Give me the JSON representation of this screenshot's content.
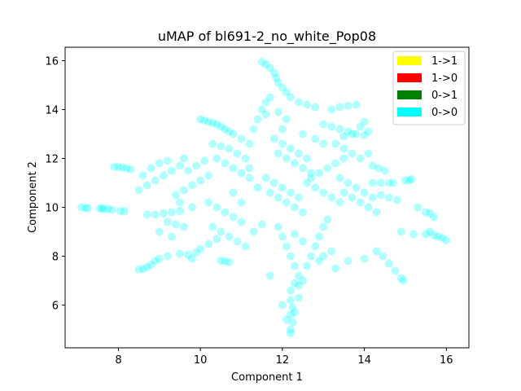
{
  "chart_data": {
    "type": "scatter",
    "title": "uMAP of bl691-2_no_white_Pop08",
    "xlabel": "Component 1",
    "ylabel": "Component 2",
    "xlim": [
      6.7,
      16.55
    ],
    "ylim": [
      4.25,
      16.55
    ],
    "xticks": [
      8,
      10,
      12,
      14,
      16
    ],
    "yticks": [
      6,
      8,
      10,
      12,
      14,
      16
    ],
    "grid": false,
    "legend_position": "top-right",
    "legend": [
      {
        "label": "1->1",
        "color": "#ffff00"
      },
      {
        "label": "1->0",
        "color": "#ff0000"
      },
      {
        "label": "0->1",
        "color": "#008000"
      },
      {
        "label": "0->0",
        "color": "#00ffff"
      }
    ],
    "series": [
      {
        "name": "0->0",
        "color": "#00ffff",
        "alpha": 0.3,
        "points": [
          [
            7.1,
            10.0
          ],
          [
            7.2,
            9.98
          ],
          [
            7.25,
            9.96
          ],
          [
            7.55,
            9.95
          ],
          [
            7.6,
            9.95
          ],
          [
            7.65,
            9.94
          ],
          [
            7.75,
            9.93
          ],
          [
            7.85,
            9.9
          ],
          [
            8.05,
            9.85
          ],
          [
            8.15,
            9.84
          ],
          [
            7.9,
            11.65
          ],
          [
            8.0,
            11.65
          ],
          [
            8.1,
            11.62
          ],
          [
            8.2,
            11.6
          ],
          [
            8.3,
            11.55
          ],
          [
            8.5,
            7.45
          ],
          [
            8.6,
            7.48
          ],
          [
            8.7,
            7.55
          ],
          [
            8.8,
            7.65
          ],
          [
            8.9,
            7.8
          ],
          [
            9.0,
            7.9
          ],
          [
            9.2,
            8.0
          ],
          [
            9.5,
            8.1
          ],
          [
            9.7,
            8.05
          ],
          [
            9.9,
            8.15
          ],
          [
            8.7,
            9.7
          ],
          [
            8.9,
            9.7
          ],
          [
            9.1,
            9.75
          ],
          [
            9.3,
            9.8
          ],
          [
            9.5,
            9.85
          ],
          [
            9.2,
            9.4
          ],
          [
            9.4,
            9.3
          ],
          [
            9.6,
            9.2
          ],
          [
            9.0,
            9.0
          ],
          [
            9.3,
            8.8
          ],
          [
            8.5,
            10.7
          ],
          [
            8.7,
            10.9
          ],
          [
            8.9,
            11.1
          ],
          [
            9.1,
            11.3
          ],
          [
            9.3,
            11.5
          ],
          [
            8.6,
            11.3
          ],
          [
            8.8,
            11.6
          ],
          [
            9.0,
            11.8
          ],
          [
            9.2,
            11.9
          ],
          [
            9.5,
            11.7
          ],
          [
            9.4,
            10.5
          ],
          [
            9.6,
            10.7
          ],
          [
            9.8,
            10.9
          ],
          [
            10.0,
            11.1
          ],
          [
            10.2,
            11.3
          ],
          [
            9.7,
            11.5
          ],
          [
            9.9,
            11.7
          ],
          [
            10.1,
            11.9
          ],
          [
            9.5,
            10.2
          ],
          [
            9.8,
            10.0
          ],
          [
            10.0,
            13.6
          ],
          [
            10.1,
            13.55
          ],
          [
            10.2,
            13.5
          ],
          [
            10.3,
            13.45
          ],
          [
            10.4,
            13.4
          ],
          [
            10.5,
            13.3
          ],
          [
            10.6,
            13.2
          ],
          [
            10.7,
            13.1
          ],
          [
            10.8,
            13.0
          ],
          [
            11.0,
            12.8
          ],
          [
            10.3,
            12.6
          ],
          [
            10.5,
            12.5
          ],
          [
            10.7,
            12.4
          ],
          [
            10.9,
            12.2
          ],
          [
            11.1,
            12.0
          ],
          [
            10.4,
            12.0
          ],
          [
            10.6,
            11.8
          ],
          [
            10.8,
            11.6
          ],
          [
            11.0,
            11.4
          ],
          [
            11.2,
            11.2
          ],
          [
            10.2,
            10.2
          ],
          [
            10.4,
            10.0
          ],
          [
            10.6,
            9.8
          ],
          [
            10.8,
            9.6
          ],
          [
            11.0,
            9.4
          ],
          [
            10.3,
            9.2
          ],
          [
            10.5,
            9.0
          ],
          [
            10.7,
            8.8
          ],
          [
            10.9,
            8.6
          ],
          [
            11.1,
            8.4
          ],
          [
            10.6,
            7.8
          ],
          [
            10.7,
            7.75
          ],
          [
            10.5,
            7.82
          ],
          [
            9.8,
            7.9
          ],
          [
            10.0,
            8.3
          ],
          [
            10.2,
            8.5
          ],
          [
            10.4,
            8.7
          ],
          [
            11.7,
            7.2
          ],
          [
            11.3,
            9.0
          ],
          [
            11.5,
            9.3
          ],
          [
            11.5,
            15.95
          ],
          [
            11.6,
            15.85
          ],
          [
            11.7,
            15.7
          ],
          [
            11.8,
            15.5
          ],
          [
            11.85,
            15.3
          ],
          [
            11.9,
            15.1
          ],
          [
            12.0,
            14.9
          ],
          [
            12.1,
            14.7
          ],
          [
            11.7,
            14.5
          ],
          [
            11.6,
            14.3
          ],
          [
            12.2,
            14.5
          ],
          [
            12.4,
            14.3
          ],
          [
            12.6,
            14.2
          ],
          [
            12.8,
            14.1
          ],
          [
            11.5,
            14.0
          ],
          [
            11.4,
            13.6
          ],
          [
            11.3,
            13.2
          ],
          [
            11.6,
            13.8
          ],
          [
            11.9,
            13.9
          ],
          [
            12.1,
            13.6
          ],
          [
            11.8,
            12.8
          ],
          [
            12.0,
            12.6
          ],
          [
            12.2,
            12.4
          ],
          [
            12.4,
            12.2
          ],
          [
            12.6,
            12.0
          ],
          [
            11.9,
            12.2
          ],
          [
            12.1,
            12.0
          ],
          [
            12.3,
            11.8
          ],
          [
            12.5,
            11.6
          ],
          [
            12.7,
            11.4
          ],
          [
            11.6,
            11.2
          ],
          [
            11.8,
            11.0
          ],
          [
            12.0,
            10.8
          ],
          [
            12.2,
            10.6
          ],
          [
            12.4,
            10.4
          ],
          [
            11.7,
            10.6
          ],
          [
            11.9,
            10.4
          ],
          [
            12.1,
            10.2
          ],
          [
            12.3,
            10.0
          ],
          [
            12.5,
            9.8
          ],
          [
            12.6,
            11.0
          ],
          [
            12.8,
            10.8
          ],
          [
            13.0,
            10.6
          ],
          [
            13.2,
            10.4
          ],
          [
            13.4,
            10.2
          ],
          [
            12.7,
            11.2
          ],
          [
            12.9,
            11.4
          ],
          [
            13.1,
            11.6
          ],
          [
            13.3,
            11.8
          ],
          [
            13.5,
            12.0
          ],
          [
            11.9,
            9.2
          ],
          [
            12.0,
            8.8
          ],
          [
            12.1,
            8.4
          ],
          [
            12.2,
            8.0
          ],
          [
            12.3,
            7.6
          ],
          [
            12.4,
            7.2
          ],
          [
            12.3,
            6.9
          ],
          [
            12.2,
            6.6
          ],
          [
            12.4,
            6.8
          ],
          [
            12.5,
            7.0
          ],
          [
            12.2,
            6.2
          ],
          [
            12.25,
            5.9
          ],
          [
            12.2,
            5.6
          ],
          [
            12.25,
            5.3
          ],
          [
            12.2,
            5.0
          ],
          [
            12.2,
            4.85
          ],
          [
            12.1,
            5.4
          ],
          [
            12.3,
            5.7
          ],
          [
            12.0,
            6.0
          ],
          [
            12.4,
            6.3
          ],
          [
            12.6,
            7.6
          ],
          [
            12.7,
            8.0
          ],
          [
            12.8,
            8.4
          ],
          [
            12.9,
            8.8
          ],
          [
            13.0,
            9.2
          ],
          [
            13.1,
            9.5
          ],
          [
            12.5,
            8.6
          ],
          [
            12.3,
            8.9
          ],
          [
            12.9,
            7.8
          ],
          [
            13.2,
            8.2
          ],
          [
            13.0,
            13.4
          ],
          [
            13.2,
            13.3
          ],
          [
            13.4,
            13.2
          ],
          [
            13.6,
            13.1
          ],
          [
            13.8,
            13.0
          ],
          [
            14.0,
            12.95
          ],
          [
            14.1,
            13.1
          ],
          [
            13.9,
            13.3
          ],
          [
            13.7,
            13.0
          ],
          [
            13.5,
            12.9
          ],
          [
            13.2,
            14.0
          ],
          [
            13.4,
            14.1
          ],
          [
            13.6,
            14.15
          ],
          [
            13.8,
            14.2
          ],
          [
            14.0,
            13.5
          ],
          [
            13.3,
            12.6
          ],
          [
            13.5,
            12.4
          ],
          [
            13.7,
            12.2
          ],
          [
            13.9,
            12.0
          ],
          [
            14.1,
            12.2
          ],
          [
            13.4,
            11.2
          ],
          [
            13.6,
            11.0
          ],
          [
            13.8,
            10.8
          ],
          [
            14.0,
            10.6
          ],
          [
            14.2,
            10.4
          ],
          [
            13.5,
            10.6
          ],
          [
            13.7,
            10.4
          ],
          [
            13.9,
            10.2
          ],
          [
            14.1,
            10.0
          ],
          [
            14.3,
            9.8
          ],
          [
            14.2,
            11.7
          ],
          [
            14.35,
            11.6
          ],
          [
            14.5,
            11.5
          ],
          [
            14.4,
            11.0
          ],
          [
            14.6,
            11.0
          ],
          [
            14.7,
            11.0
          ],
          [
            14.2,
            11.0
          ],
          [
            14.4,
            10.5
          ],
          [
            14.6,
            10.4
          ],
          [
            14.8,
            10.3
          ],
          [
            14.3,
            8.2
          ],
          [
            14.45,
            8.0
          ],
          [
            14.6,
            7.7
          ],
          [
            14.75,
            7.4
          ],
          [
            14.9,
            7.1
          ],
          [
            14.95,
            7.0
          ],
          [
            14.0,
            7.9
          ],
          [
            13.0,
            8.0
          ],
          [
            13.3,
            7.5
          ],
          [
            13.6,
            7.8
          ],
          [
            15.0,
            11.1
          ],
          [
            15.1,
            11.1
          ],
          [
            15.15,
            11.15
          ],
          [
            15.3,
            10.0
          ],
          [
            15.5,
            9.8
          ],
          [
            15.6,
            9.75
          ],
          [
            15.7,
            9.6
          ],
          [
            14.9,
            9.0
          ],
          [
            15.2,
            8.9
          ],
          [
            15.5,
            8.9
          ],
          [
            15.7,
            8.85
          ],
          [
            15.9,
            8.75
          ],
          [
            16.0,
            8.65
          ],
          [
            15.8,
            8.8
          ],
          [
            15.6,
            9.0
          ],
          [
            12.8,
            12.8
          ],
          [
            13.0,
            12.6
          ],
          [
            12.5,
            13.0
          ],
          [
            12.0,
            13.2
          ],
          [
            11.2,
            12.6
          ],
          [
            10.8,
            10.6
          ],
          [
            11.0,
            10.2
          ],
          [
            11.4,
            10.8
          ],
          [
            11.2,
            11.6
          ],
          [
            9.6,
            12.0
          ]
        ]
      }
    ]
  }
}
